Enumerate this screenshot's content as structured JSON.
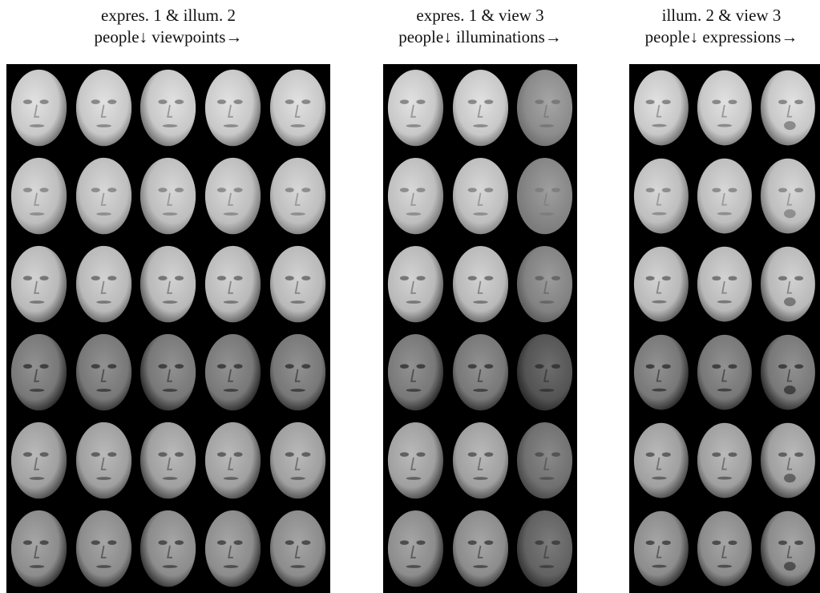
{
  "panels": [
    {
      "id": "viewpoints",
      "caption_line1": "expres. 1 & illum. 2",
      "caption_line2": "people↓ viewpoints→",
      "rows": 6,
      "cols": 5
    },
    {
      "id": "illuminations",
      "caption_line1": "expres. 1 & view 3",
      "caption_line2": "people↓ illuminations→",
      "rows": 6,
      "cols": 3
    },
    {
      "id": "expressions",
      "caption_line1": "illum. 2 & view 3",
      "caption_line2": "people↓ expressions→",
      "rows": 6,
      "cols": 3
    }
  ],
  "colors": {
    "background": "#ffffff",
    "panel": "#000000",
    "text": "#111111"
  }
}
